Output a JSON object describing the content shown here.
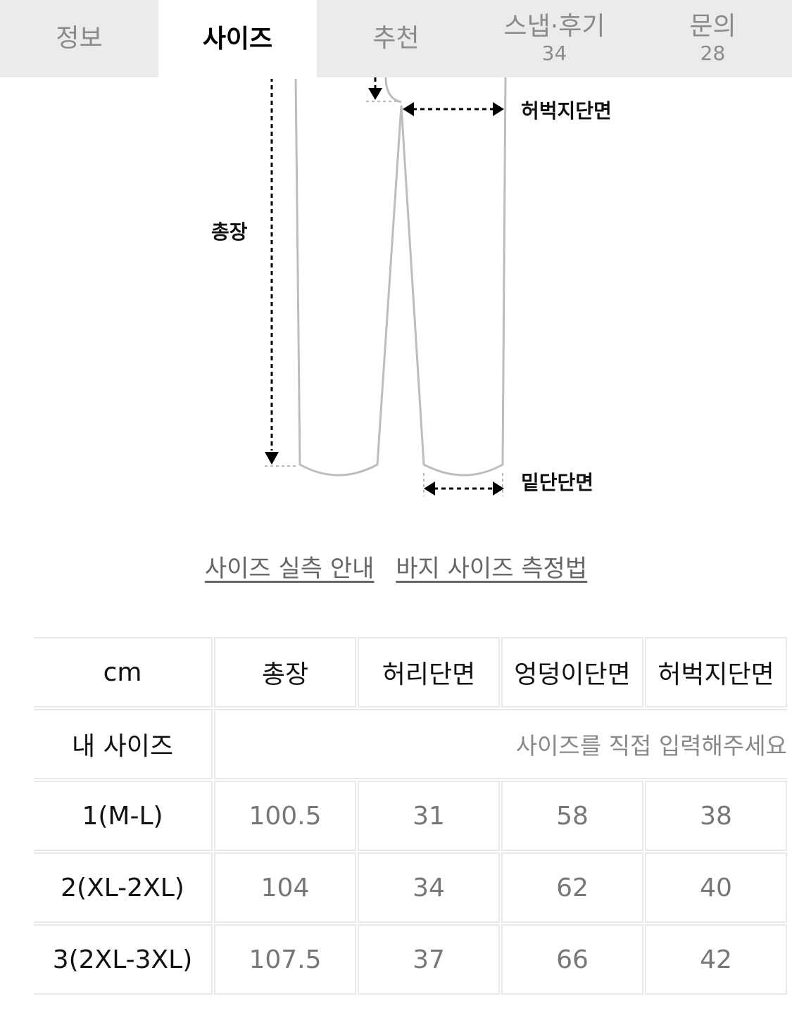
{
  "tabs": [
    {
      "label": "정보"
    },
    {
      "label": "사이즈",
      "active": true
    },
    {
      "label": "추천"
    },
    {
      "label": "스냅·후기",
      "count": "34"
    },
    {
      "label": "문의",
      "count": "28"
    }
  ],
  "diagram": {
    "labels": {
      "thigh": "허벅지단면",
      "length": "총장",
      "hem": "밑단단면"
    }
  },
  "links": [
    "사이즈 실측 안내",
    "바지 사이즈 측정법"
  ],
  "table": {
    "unit": "cm",
    "headers": [
      "총장",
      "허리단면",
      "엉덩이단면",
      "허벅지단면"
    ],
    "my_size": {
      "label": "내 사이즈",
      "placeholder": "사이즈를 직접 입력해주세요"
    },
    "rows": [
      {
        "size": "1(M-L)",
        "values": [
          "100.5",
          "31",
          "58",
          "38"
        ]
      },
      {
        "size": "2(XL-2XL)",
        "values": [
          "104",
          "34",
          "62",
          "40"
        ]
      },
      {
        "size": "3(2XL-3XL)",
        "values": [
          "107.5",
          "37",
          "66",
          "42"
        ]
      }
    ]
  }
}
